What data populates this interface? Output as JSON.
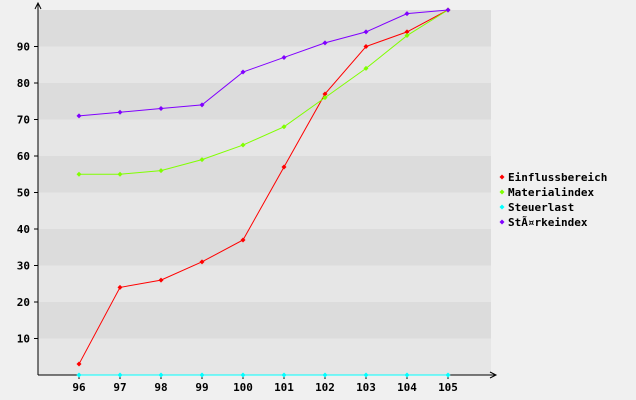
{
  "chart_data": {
    "type": "line",
    "x": [
      96,
      97,
      98,
      99,
      100,
      101,
      102,
      103,
      104,
      105
    ],
    "ylim": [
      0,
      100
    ],
    "yticks": [
      10,
      20,
      30,
      40,
      50,
      60,
      70,
      80,
      90
    ],
    "grid": "horizontal bands",
    "legend_position": "right",
    "series": [
      {
        "name": "Einflussbereich",
        "color": "#ff0000",
        "values": [
          3,
          24,
          26,
          31,
          37,
          57,
          77,
          90,
          94,
          100
        ]
      },
      {
        "name": "Materialindex",
        "color": "#80ff00",
        "values": [
          55,
          55,
          56,
          59,
          63,
          68,
          76,
          84,
          93,
          100
        ]
      },
      {
        "name": "Steuerlast",
        "color": "#00ffff",
        "values": [
          0,
          0,
          0,
          0,
          0,
          0,
          0,
          0,
          0,
          0
        ]
      },
      {
        "name": "StÃ¤rkeindex",
        "color": "#8000ff",
        "values": [
          71,
          72,
          73,
          74,
          83,
          87,
          91,
          94,
          99,
          100
        ]
      }
    ]
  }
}
